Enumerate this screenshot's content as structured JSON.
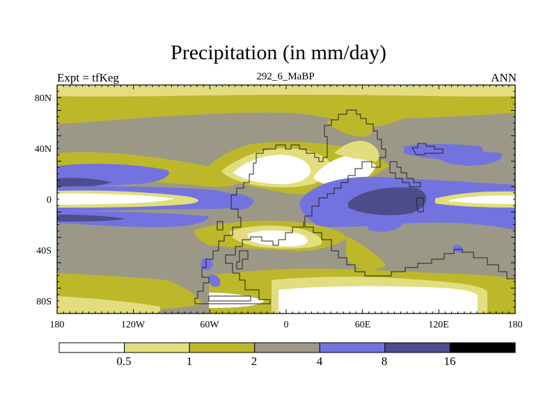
{
  "title": "Precipitation (in mm/day)",
  "left_label": "Expt = tfKeg",
  "center_label": "292_6_MaBP",
  "right_label": "ANN",
  "axes": {
    "x_ticks": [
      "180",
      "120W",
      "60W",
      "0",
      "60E",
      "120E",
      "180"
    ],
    "y_ticks": [
      "80N",
      "40N",
      "0",
      "40S",
      "80S"
    ]
  },
  "colorbar": {
    "levels": [
      "0.5",
      "1",
      "2",
      "4",
      "8",
      "16"
    ],
    "colors": [
      "#ffffff",
      "#e2de80",
      "#bcb82a",
      "#9c9888",
      "#7373df",
      "#4d4d8c",
      "#000000"
    ]
  }
}
